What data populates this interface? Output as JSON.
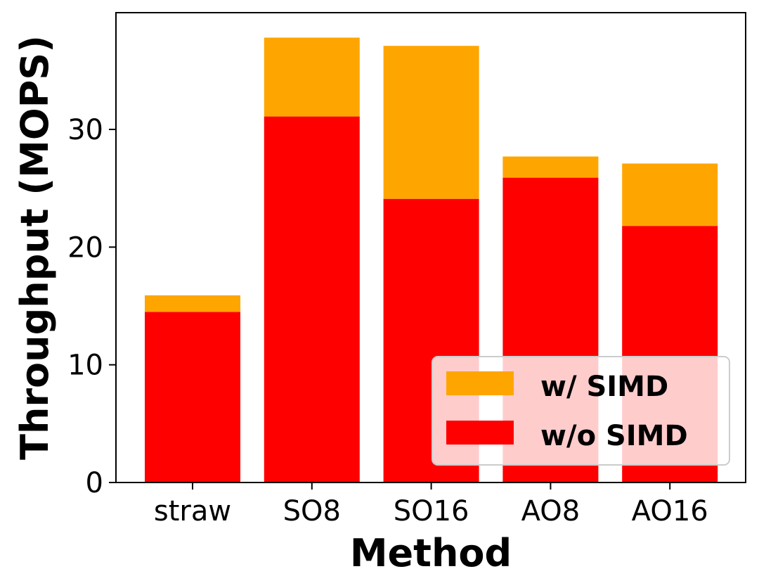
{
  "chart_data": {
    "type": "bar",
    "stacked": true,
    "categories": [
      "straw",
      "SO8",
      "SO16",
      "AO8",
      "AO16"
    ],
    "series": [
      {
        "name": "w/o SIMD",
        "color": "#ff0000",
        "values": [
          14.5,
          31.1,
          24.1,
          25.9,
          21.8
        ]
      },
      {
        "name": "w/ SIMD",
        "color": "#ffa500",
        "values": [
          1.4,
          6.7,
          13.0,
          1.8,
          5.3
        ]
      }
    ],
    "totals": [
      15.9,
      37.8,
      37.1,
      27.7,
      27.1
    ],
    "xlabel": "Method",
    "ylabel": "Throughput (MOPS)",
    "ylim": [
      0,
      40
    ],
    "yticks": [
      0,
      10,
      20,
      30
    ],
    "grid": false,
    "legend": {
      "placement": "lower-right",
      "entries": [
        {
          "label": "w/ SIMD",
          "color": "#ffa500"
        },
        {
          "label": "w/o SIMD",
          "color": "#ff0000"
        }
      ]
    }
  }
}
